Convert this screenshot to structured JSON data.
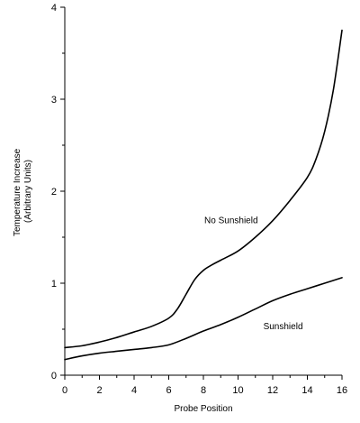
{
  "chart_data": {
    "type": "line",
    "title": "",
    "xlabel": "Probe Position",
    "ylabel_line1": "Temperature Increase",
    "ylabel_line2": "(Arbitrary Units)",
    "xlim": [
      0,
      16
    ],
    "ylim": [
      0,
      4
    ],
    "x_ticks": [
      0,
      2,
      4,
      6,
      8,
      10,
      12,
      14,
      16
    ],
    "y_ticks": [
      0,
      1,
      2,
      3,
      4
    ],
    "grid": false,
    "legend": "none",
    "line_color": "#000000",
    "series": [
      {
        "name": "No Sunshield",
        "x": [
          0,
          1,
          2,
          3,
          4,
          5,
          6,
          6.5,
          7,
          7.5,
          8,
          8.5,
          9,
          10,
          11,
          12,
          13,
          14,
          14.5,
          15,
          15.5,
          16
        ],
        "y": [
          0.3,
          0.32,
          0.36,
          0.41,
          0.47,
          0.53,
          0.62,
          0.72,
          0.88,
          1.04,
          1.14,
          1.2,
          1.25,
          1.35,
          1.5,
          1.68,
          1.9,
          2.15,
          2.35,
          2.65,
          3.1,
          3.75
        ]
      },
      {
        "name": "Sunshield",
        "x": [
          0,
          1,
          2,
          3,
          4,
          5,
          6,
          7,
          8,
          9,
          10,
          11,
          12,
          13,
          14,
          15,
          16
        ],
        "y": [
          0.17,
          0.21,
          0.24,
          0.26,
          0.28,
          0.3,
          0.33,
          0.4,
          0.48,
          0.55,
          0.63,
          0.72,
          0.81,
          0.88,
          0.94,
          1.0,
          1.06
        ]
      }
    ],
    "annotations": [
      {
        "text": "No Sunshield",
        "x": 9.6,
        "y": 1.65
      },
      {
        "text": "Sunshield",
        "x": 12.6,
        "y": 0.5
      }
    ]
  }
}
